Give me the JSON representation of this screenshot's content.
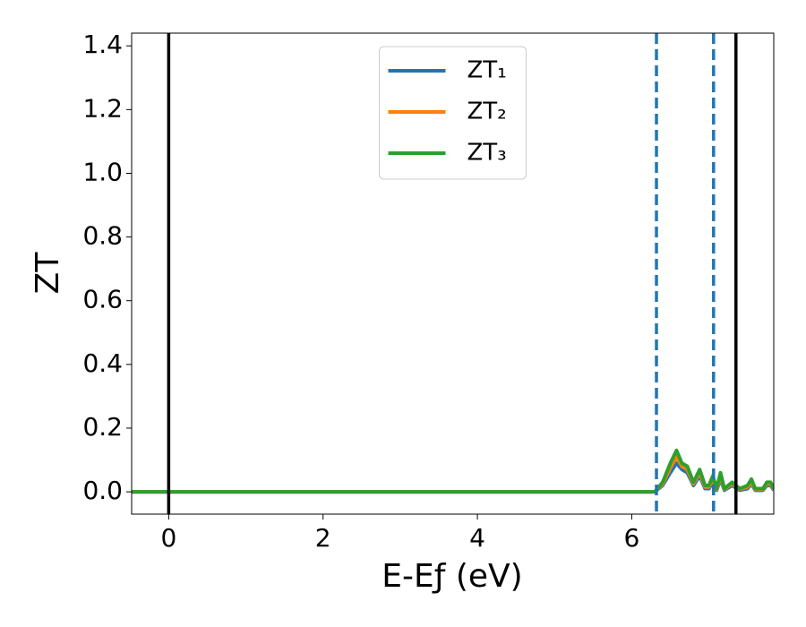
{
  "chart_data": {
    "type": "line",
    "xlabel": "E-Eƒ (eV)",
    "ylabel": "ZT",
    "x": [
      -0.48,
      6.3,
      6.4,
      6.5,
      6.58,
      6.65,
      6.72,
      6.8,
      6.88,
      6.95,
      7.0,
      7.05,
      7.1,
      7.15,
      7.2,
      7.3,
      7.4,
      7.5,
      7.55,
      7.6,
      7.7,
      7.75,
      7.8,
      7.84
    ],
    "series": [
      {
        "name": "ZT₁",
        "color": "#1f77b4",
        "values": [
          0,
          0,
          0.02,
          0.06,
          0.09,
          0.07,
          0.06,
          0.02,
          0.05,
          0.01,
          0.01,
          0.03,
          0.005,
          0.04,
          0.005,
          0.02,
          0.005,
          0.01,
          0.025,
          0.005,
          0.005,
          0.02,
          0.02,
          0.005
        ]
      },
      {
        "name": "ZT₂",
        "color": "#ff7f0e",
        "values": [
          0,
          0,
          0.025,
          0.075,
          0.11,
          0.08,
          0.07,
          0.025,
          0.06,
          0.015,
          0.015,
          0.04,
          0.008,
          0.05,
          0.008,
          0.025,
          0.008,
          0.015,
          0.03,
          0.008,
          0.008,
          0.025,
          0.025,
          0.008
        ]
      },
      {
        "name": "ZT₃",
        "color": "#2ca02c",
        "values": [
          0,
          0,
          0.03,
          0.09,
          0.13,
          0.09,
          0.08,
          0.03,
          0.07,
          0.02,
          0.02,
          0.05,
          0.01,
          0.06,
          0.01,
          0.03,
          0.01,
          0.02,
          0.04,
          0.01,
          0.01,
          0.03,
          0.03,
          0.01
        ]
      }
    ],
    "vlines": [
      {
        "x": 0,
        "color": "#000000",
        "dashed": false
      },
      {
        "x": 7.35,
        "color": "#000000",
        "dashed": false
      },
      {
        "x": 6.32,
        "color": "#1f77b4",
        "dashed": true
      },
      {
        "x": 7.06,
        "color": "#1f77b4",
        "dashed": true
      }
    ],
    "xlim": [
      -0.48,
      7.84
    ],
    "ylim": [
      -0.07,
      1.44
    ],
    "xticks": [
      0,
      2,
      4,
      6
    ],
    "yticks": [
      {
        "value": 0,
        "label": "0.0"
      },
      {
        "value": 0.2,
        "label": "0.2"
      },
      {
        "value": 0.4,
        "label": "0.4"
      },
      {
        "value": 0.6,
        "label": "0.6"
      },
      {
        "value": 0.8,
        "label": "0.8"
      },
      {
        "value": 1.0,
        "label": "1.0"
      },
      {
        "value": 1.2,
        "label": "1.2"
      },
      {
        "value": 1.4,
        "label": "1.4"
      }
    ],
    "legend": "upper center",
    "grid": false
  }
}
